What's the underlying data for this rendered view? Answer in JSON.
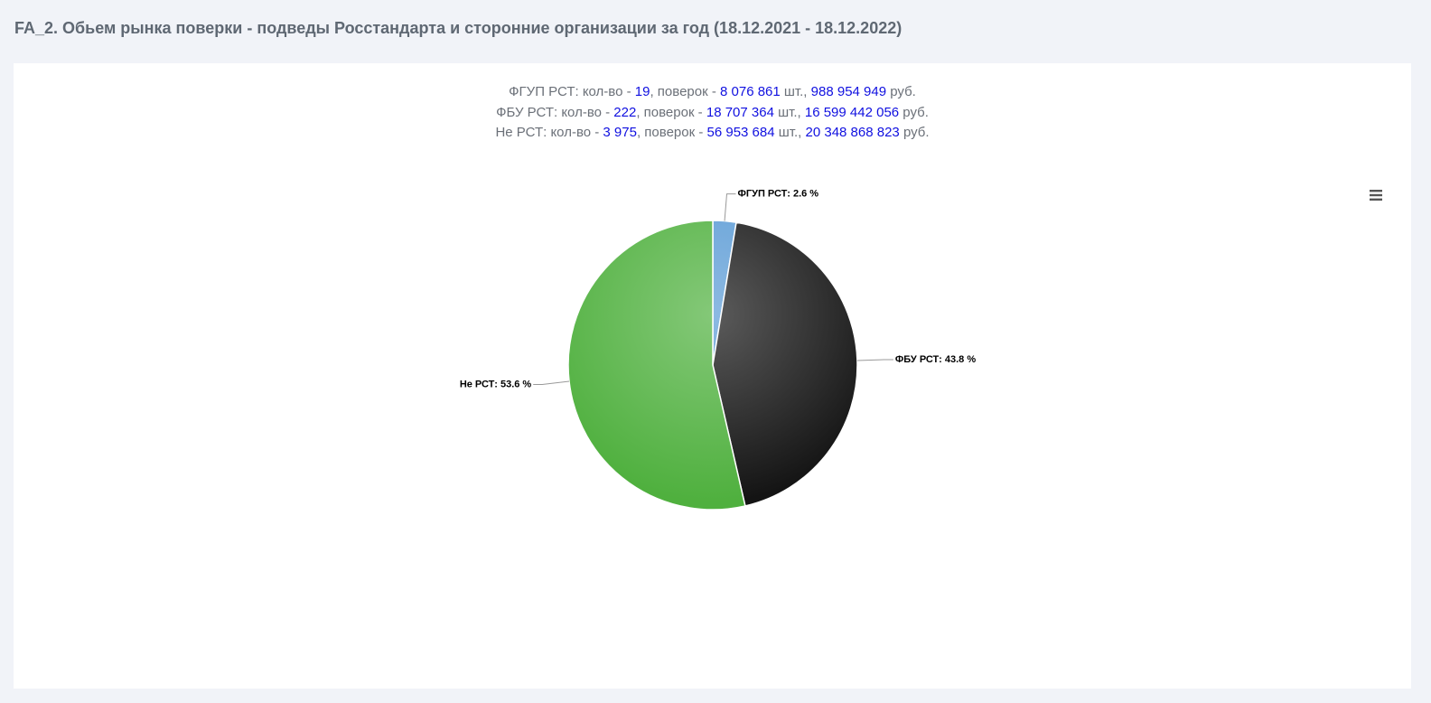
{
  "header": {
    "title": "FA_2. Обьем рынка поверки - подведы Росстандарта и сторонние организации за год (18.12.2021 - 18.12.2022)"
  },
  "summary": [
    [
      "ФГУП РСТ: кол-во - ",
      "19",
      ", поверок - ",
      "8 076 861",
      " шт., ",
      "988 954 949",
      " руб."
    ],
    [
      "ФБУ РСТ: кол-во - ",
      "222",
      ", поверок - ",
      "18 707 364",
      " шт., ",
      "16 599 442 056",
      " руб."
    ],
    [
      "Не РСТ: кол-во - ",
      "3 975",
      ", поверок - ",
      "56 953 684",
      " шт., ",
      "20 348 868 823",
      " руб."
    ]
  ],
  "chart_data": {
    "type": "pie",
    "values": [
      2.6,
      43.8,
      53.6
    ],
    "value_labels": [
      "ФГУП РСТ: 2.6 %",
      "ФБУ РСТ: 43.8 %",
      "Не РСТ: 53.6 %"
    ],
    "colors": [
      "#5b9bd5",
      "#141414",
      "#4fb03e"
    ]
  }
}
